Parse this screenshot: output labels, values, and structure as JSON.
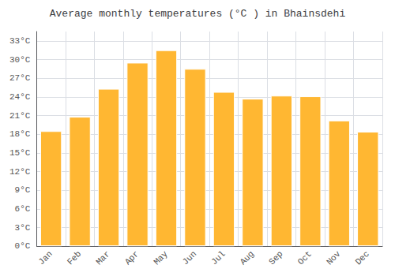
{
  "chart_data": {
    "type": "bar",
    "title": "Average monthly temperatures (°C ) in Bhainsdehi",
    "categories": [
      "Jan",
      "Feb",
      "Mar",
      "Apr",
      "May",
      "Jun",
      "Jul",
      "Aug",
      "Sep",
      "Oct",
      "Nov",
      "Dec"
    ],
    "values": [
      18.5,
      20.8,
      25.3,
      29.5,
      31.5,
      28.5,
      24.8,
      23.7,
      24.2,
      24.1,
      20.2,
      18.4
    ],
    "color": "#FFB732",
    "ylim": [
      0,
      34.5
    ],
    "yticks": [
      {
        "value": 0,
        "label": "0°C"
      },
      {
        "value": 3,
        "label": "3°C"
      },
      {
        "value": 6,
        "label": "6°C"
      },
      {
        "value": 9,
        "label": "9°C"
      },
      {
        "value": 12,
        "label": "12°C"
      },
      {
        "value": 15,
        "label": "15°C"
      },
      {
        "value": 18,
        "label": "18°C"
      },
      {
        "value": 21,
        "label": "21°C"
      },
      {
        "value": 24,
        "label": "24°C"
      },
      {
        "value": 27,
        "label": "27°C"
      },
      {
        "value": 30,
        "label": "30°C"
      },
      {
        "value": 33,
        "label": "33°C"
      }
    ],
    "grid": true
  }
}
